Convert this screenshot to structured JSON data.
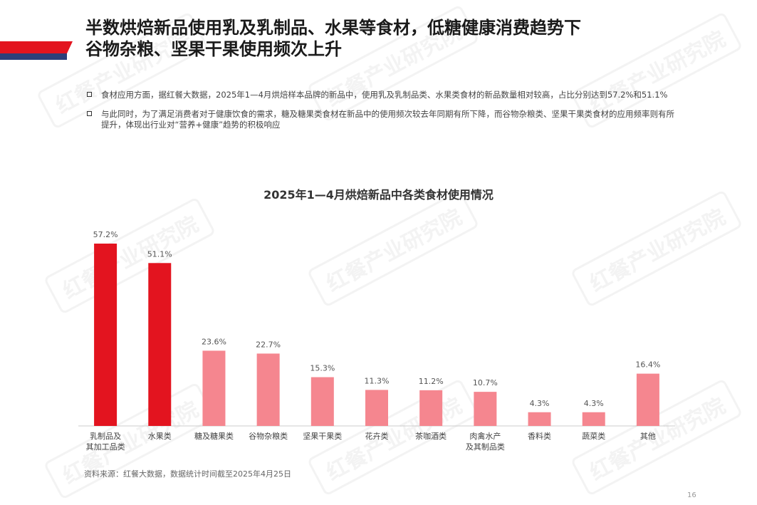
{
  "header": {
    "title_line1": "半数烘焙新品使用乳及乳制品、水果等食材，低糖健康消费趋势下",
    "title_line2": "谷物杂粮、坚果干果使用频次上升"
  },
  "bullets": [
    "食材应用方面，据红餐大数据，2025年1—4月烘焙样本品牌的新品中，使用乳及乳制品类、水果类食材的新品数量相对较高，占比分别达到57.2%和51.1%",
    "与此同时，为了满足消费者对于健康饮食的需求，糖及糖果类食材在新品中的使用频次较去年同期有所下降，而谷物杂粮类、坚果干果类食材的应用频率则有所提升，体现出行业对“营养+健康”趋势的积极响应"
  ],
  "watermark": "红餐产业研究院",
  "chart_data": {
    "type": "bar",
    "title": "2025年1—4月烘焙新品中各类食材使用情况",
    "categories": [
      "乳制品及\n其加工品类",
      "水果类",
      "糖及糖果类",
      "谷物杂粮类",
      "坚果干果类",
      "花卉类",
      "茶咖酒类",
      "肉禽水产\n及其制品类",
      "香料类",
      "蔬菜类",
      "其他"
    ],
    "values": [
      57.2,
      51.1,
      23.6,
      22.7,
      15.3,
      11.3,
      11.2,
      10.7,
      4.3,
      4.3,
      16.4
    ],
    "value_labels": [
      "57.2%",
      "51.1%",
      "23.6%",
      "22.7%",
      "15.3%",
      "11.3%",
      "11.2%",
      "10.7%",
      "4.3%",
      "4.3%",
      "16.4%"
    ],
    "highlight_count": 2,
    "colors": {
      "highlight": "#e3141f",
      "normal": "#f5868f",
      "axis": "#cccccc",
      "label": "#555555"
    },
    "ylim": [
      0,
      57.2
    ]
  },
  "footer": {
    "source": "资料来源：红餐大数据，数据统计时间截至2025年4月25日",
    "page_number": "16"
  }
}
